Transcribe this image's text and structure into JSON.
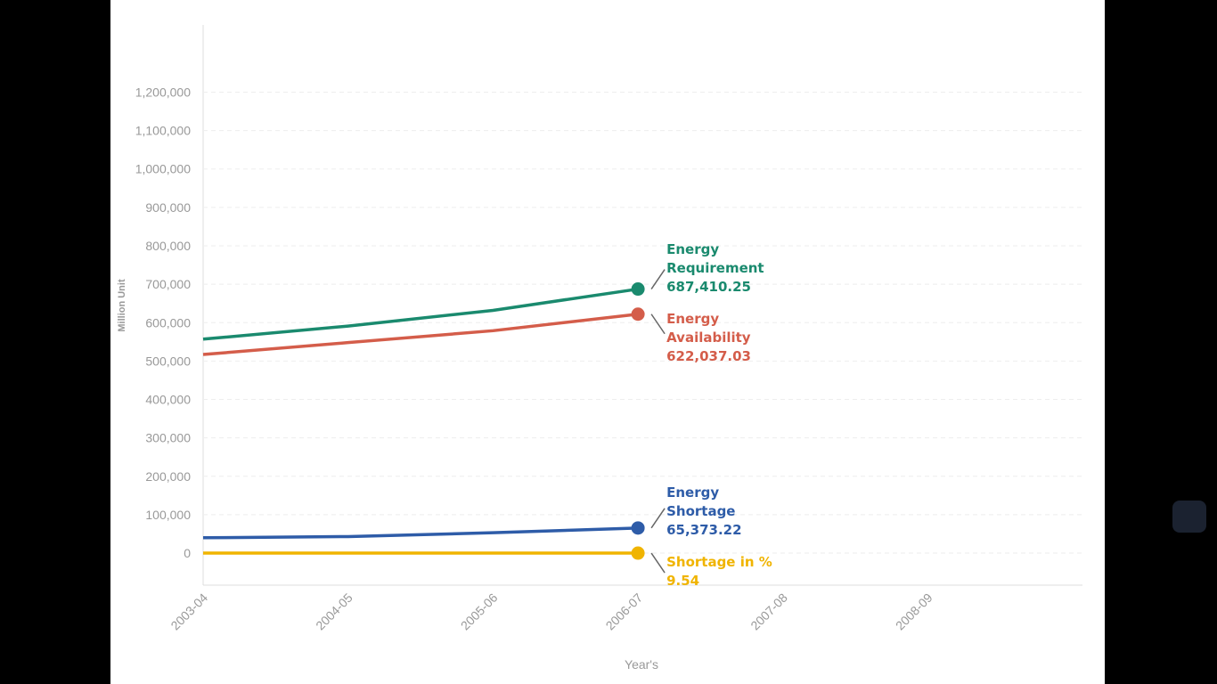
{
  "chart_data": {
    "type": "line",
    "y_label": "Million Unit",
    "x_label": "Year's",
    "categories": [
      "2003-04",
      "2004-05",
      "2005-06",
      "2006-07",
      "2007-08",
      "2008-09"
    ],
    "ylim": [
      -83400,
      1375000
    ],
    "yticks": [
      0,
      {
        "value": 100000,
        "label": "100,000"
      },
      {
        "value": 200000,
        "label": "200,000"
      },
      {
        "value": 300000,
        "label": "300,000"
      },
      {
        "value": 400000,
        "label": "400,000"
      },
      {
        "value": 500000,
        "label": "500,000"
      },
      {
        "value": 600000,
        "label": "600,000"
      },
      {
        "value": 700000,
        "label": "700,000"
      },
      {
        "value": 800000,
        "label": "800,000"
      },
      {
        "value": 900000,
        "label": "900,000"
      },
      {
        "value": 1000000,
        "label": "1,000,000"
      },
      {
        "value": 1100000,
        "label": "1,100,000"
      },
      {
        "value": 1200000,
        "label": "1,200,000"
      }
    ],
    "grid": true,
    "series": [
      {
        "name": "Energy Requirement",
        "color": "#1a8a6e",
        "values": [
          557000,
          591000,
          632000,
          687410.25,
          null,
          null
        ],
        "value_labels": [
          null,
          null,
          null,
          "687,410.25",
          null,
          null
        ]
      },
      {
        "name": "Energy Availability",
        "color": "#d45d4a",
        "values": [
          517000,
          548000,
          579000,
          622037.03,
          null,
          null
        ],
        "value_labels": [
          null,
          null,
          null,
          "622,037.03",
          null,
          null
        ]
      },
      {
        "name": "Energy Shortage",
        "color": "#2e5ca8",
        "values": [
          40000,
          43000,
          53000,
          65373.22,
          null,
          null
        ],
        "value_labels": [
          null,
          null,
          null,
          "65,373.22",
          null,
          null
        ]
      },
      {
        "name": "Shortage in %",
        "color": "#f0b400",
        "values": [
          7.1,
          7.3,
          8.4,
          9.54,
          null,
          null
        ]
      }
    ]
  }
}
